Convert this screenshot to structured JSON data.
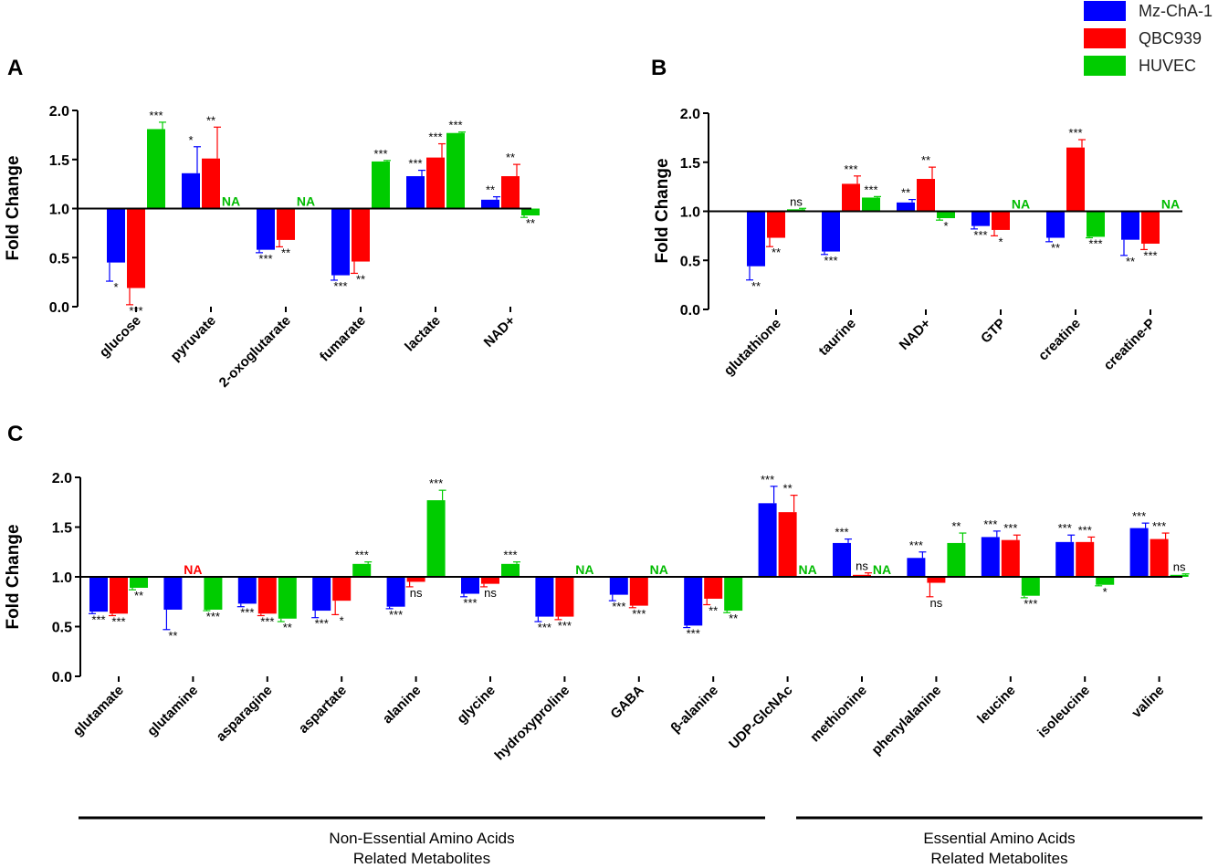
{
  "legend": [
    {
      "name": "Mz-ChA-1",
      "color": "#0000ff"
    },
    {
      "name": "QBC939",
      "color": "#ff0000"
    },
    {
      "name": "HUVEC",
      "color": "#00cc00"
    }
  ],
  "chart_data": [
    {
      "type": "bar",
      "panel": "A",
      "ylabel": "Fold Change",
      "ylim": [
        0,
        2.0
      ],
      "yticks": [
        "0.0",
        "0.5",
        "1.0",
        "1.5",
        "2.0"
      ],
      "baseline": 1.0,
      "categories": [
        "glucose",
        "pyruvate",
        "2-oxoglutarate",
        "fumarate",
        "lactate",
        "NAD+"
      ],
      "series": [
        {
          "name": "Mz-ChA-1",
          "values": [
            0.45,
            1.36,
            0.58,
            0.32,
            1.33,
            1.09
          ],
          "errors": [
            0.19,
            0.27,
            0.03,
            0.05,
            0.06,
            0.03
          ],
          "sig": [
            "*",
            "*",
            "***",
            "***",
            "***",
            "**"
          ]
        },
        {
          "name": "QBC939",
          "values": [
            0.19,
            1.51,
            0.68,
            0.46,
            1.52,
            1.33
          ],
          "errors": [
            0.17,
            0.32,
            0.07,
            0.12,
            0.14,
            0.12
          ],
          "sig": [
            "***",
            "**",
            "**",
            "**",
            "***",
            "**"
          ]
        },
        {
          "name": "HUVEC",
          "values": [
            1.81,
            null,
            null,
            1.48,
            1.77,
            0.93
          ],
          "errors": [
            0.07,
            0,
            0,
            0.01,
            0.01,
            0.02
          ],
          "sig": [
            "***",
            "NA",
            "NA",
            "***",
            "***",
            "**"
          ]
        }
      ]
    },
    {
      "type": "bar",
      "panel": "B",
      "ylabel": "Fold Change",
      "ylim": [
        0,
        2.0
      ],
      "yticks": [
        "0.0",
        "0.5",
        "1.0",
        "1.5",
        "2.0"
      ],
      "baseline": 1.0,
      "categories": [
        "glutathione",
        "taurine",
        "NAD+",
        "GTP",
        "creatine",
        "creatine-P"
      ],
      "series": [
        {
          "name": "Mz-ChA-1",
          "values": [
            0.44,
            0.59,
            1.09,
            0.85,
            0.73,
            0.71
          ],
          "errors": [
            0.14,
            0.03,
            0.03,
            0.03,
            0.04,
            0.16
          ],
          "sig": [
            "**",
            "***",
            "**",
            "***",
            "**",
            "**"
          ]
        },
        {
          "name": "QBC939",
          "values": [
            0.73,
            1.28,
            1.33,
            0.81,
            1.65,
            0.67
          ],
          "errors": [
            0.09,
            0.08,
            0.12,
            0.06,
            0.08,
            0.06
          ],
          "sig": [
            "**",
            "***",
            "**",
            "*",
            "***",
            "***"
          ]
        },
        {
          "name": "HUVEC",
          "values": [
            1.02,
            1.14,
            0.93,
            null,
            0.74,
            null
          ],
          "errors": [
            0.01,
            0.01,
            0.02,
            0,
            0.01,
            0
          ],
          "sig": [
            "ns",
            "***",
            "*",
            "NA",
            "***",
            "NA"
          ]
        }
      ]
    },
    {
      "type": "bar",
      "panel": "C",
      "ylabel": "Fold Change",
      "ylim": [
        0,
        2.0
      ],
      "yticks": [
        "0.0",
        "0.5",
        "1.0",
        "1.5",
        "2.0"
      ],
      "baseline": 1.0,
      "categories": [
        "glutamate",
        "glutamine",
        "asparagine",
        "aspartate",
        "alanine",
        "glycine",
        "hydroxyproline",
        "GABA",
        "β-alanine",
        "UDP-GlcNAc",
        "methionine",
        "phenylalanine",
        "leucine",
        "isoleucine",
        "valine"
      ],
      "series": [
        {
          "name": "Mz-ChA-1",
          "values": [
            0.65,
            0.67,
            0.73,
            0.66,
            0.7,
            0.83,
            0.6,
            0.82,
            0.51,
            1.74,
            1.34,
            1.19,
            1.4,
            1.35,
            1.49
          ],
          "errors": [
            0.02,
            0.2,
            0.03,
            0.07,
            0.02,
            0.03,
            0.05,
            0.06,
            0.02,
            0.17,
            0.04,
            0.06,
            0.06,
            0.07,
            0.05
          ],
          "sig": [
            "***",
            "**",
            "***",
            "***",
            "***",
            "***",
            "***",
            "***",
            "***",
            "***",
            "***",
            "***",
            "***",
            "***",
            "***"
          ]
        },
        {
          "name": "QBC939",
          "values": [
            0.63,
            null,
            0.63,
            0.76,
            0.95,
            0.93,
            0.6,
            0.71,
            0.78,
            1.65,
            1.02,
            0.94,
            1.37,
            1.35,
            1.38
          ],
          "errors": [
            0.02,
            0,
            0.02,
            0.14,
            0.05,
            0.03,
            0.03,
            0.02,
            0.06,
            0.17,
            0.02,
            0.14,
            0.05,
            0.05,
            0.06
          ],
          "sig": [
            "***",
            "NA",
            "***",
            "*",
            "ns",
            "ns",
            "***",
            "***",
            "**",
            "**",
            "ns",
            "ns",
            "***",
            "***",
            "***"
          ]
        },
        {
          "name": "HUVEC",
          "values": [
            0.89,
            0.67,
            0.58,
            1.13,
            1.77,
            1.13,
            null,
            null,
            0.66,
            null,
            null,
            1.34,
            0.81,
            0.92,
            1.02
          ],
          "errors": [
            0.02,
            0.01,
            0.03,
            0.02,
            0.1,
            0.02,
            0,
            0,
            0.02,
            0,
            0,
            0.1,
            0.02,
            0.01,
            0.01
          ],
          "sig": [
            "**",
            "***",
            "**",
            "***",
            "***",
            "***",
            "NA",
            "NA",
            "**",
            "NA",
            "NA",
            "**",
            "***",
            "*",
            "ns"
          ]
        }
      ],
      "groups": [
        {
          "label_line1": "Non-Essential Amino Acids",
          "label_line2": "Related Metabolites",
          "from": 0,
          "to": 9
        },
        {
          "label_line1": "Essential Amino Acids",
          "label_line2": "Related Metabolites",
          "from": 10,
          "to": 14
        }
      ]
    }
  ]
}
